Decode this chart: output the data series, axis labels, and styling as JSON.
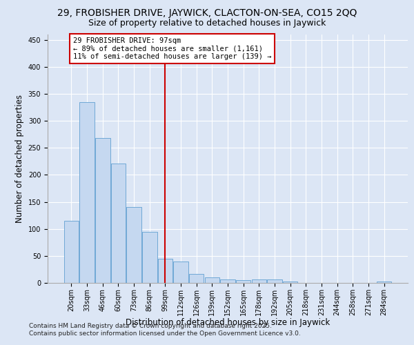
{
  "title_line1": "29, FROBISHER DRIVE, JAYWICK, CLACTON-ON-SEA, CO15 2QQ",
  "title_line2": "Size of property relative to detached houses in Jaywick",
  "xlabel": "Distribution of detached houses by size in Jaywick",
  "ylabel": "Number of detached properties",
  "categories": [
    "20sqm",
    "33sqm",
    "46sqm",
    "60sqm",
    "73sqm",
    "86sqm",
    "99sqm",
    "112sqm",
    "126sqm",
    "139sqm",
    "152sqm",
    "165sqm",
    "178sqm",
    "192sqm",
    "205sqm",
    "218sqm",
    "231sqm",
    "244sqm",
    "258sqm",
    "271sqm",
    "284sqm"
  ],
  "values": [
    115,
    335,
    268,
    221,
    140,
    95,
    45,
    40,
    17,
    10,
    6,
    5,
    6,
    7,
    2,
    0,
    0,
    0,
    0,
    0,
    3
  ],
  "bar_color": "#c5d8f0",
  "bar_edge_color": "#6fa8d6",
  "vline_x": 6,
  "vline_color": "#cc0000",
  "annotation_text": "29 FROBISHER DRIVE: 97sqm\n← 89% of detached houses are smaller (1,161)\n11% of semi-detached houses are larger (139) →",
  "annotation_box_color": "#ffffff",
  "annotation_box_edge_color": "#cc0000",
  "ylim": [
    0,
    460
  ],
  "yticks": [
    0,
    50,
    100,
    150,
    200,
    250,
    300,
    350,
    400,
    450
  ],
  "background_color": "#dce6f5",
  "footer_line1": "Contains HM Land Registry data © Crown copyright and database right 2025.",
  "footer_line2": "Contains public sector information licensed under the Open Government Licence v3.0.",
  "title_fontsize": 10,
  "subtitle_fontsize": 9,
  "axis_label_fontsize": 8.5,
  "tick_fontsize": 7,
  "annotation_fontsize": 7.5,
  "footer_fontsize": 6.5
}
